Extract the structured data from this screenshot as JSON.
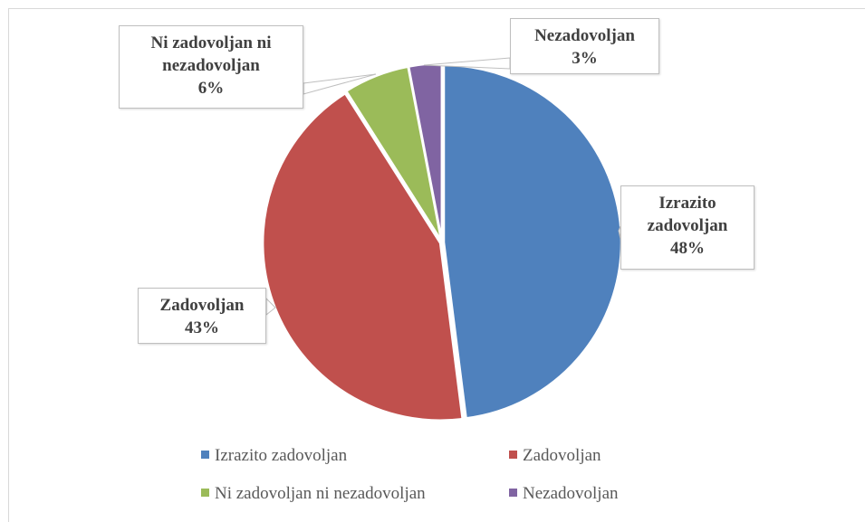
{
  "chart_data": {
    "type": "pie",
    "categories": [
      "Izrazito zadovoljan",
      "Zadovoljan",
      "Ni zadovoljan ni nezadovoljan",
      "Nezadovoljan"
    ],
    "values": [
      48,
      43,
      6,
      3
    ],
    "value_labels": [
      "48%",
      "43%",
      "6%",
      "3%"
    ],
    "colors": [
      "#4f81bd",
      "#c0504d",
      "#9bbb59",
      "#8064a2"
    ],
    "legend": "bottom"
  }
}
